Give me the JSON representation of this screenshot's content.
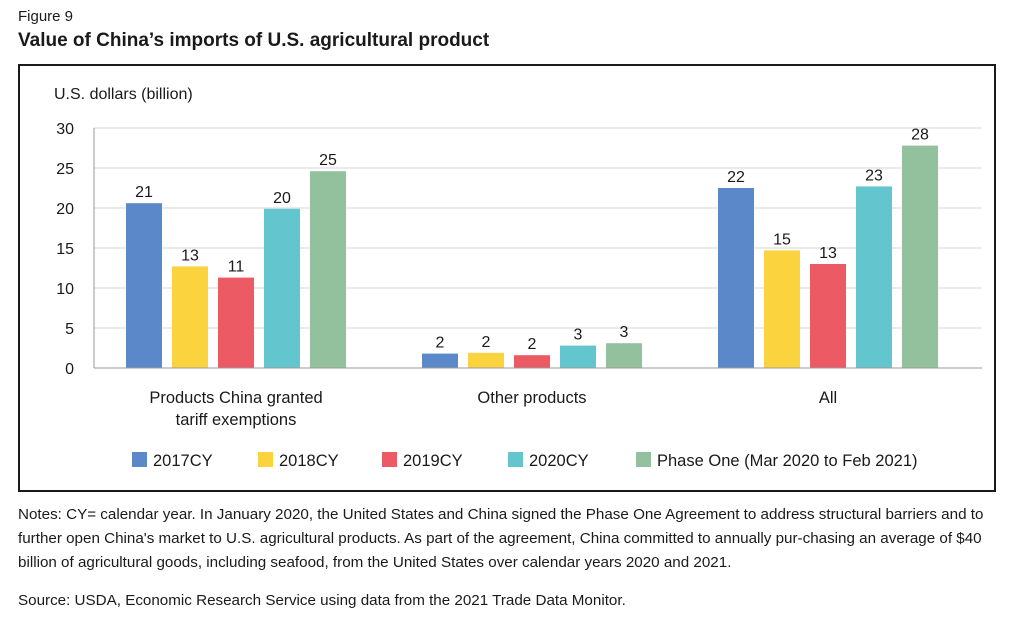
{
  "figure": {
    "label": "Figure 9",
    "title": "Value of China’s imports of U.S. agricultural product"
  },
  "chart_data": {
    "type": "bar",
    "unit_label": "U.S. dollars (billion)",
    "categories": [
      [
        "Products China granted",
        "tariff exemptions"
      ],
      [
        "Other products"
      ],
      [
        "All"
      ]
    ],
    "ylim": [
      0,
      30
    ],
    "yticks": [
      0,
      5,
      10,
      15,
      20,
      25,
      30
    ],
    "grid": true,
    "legend_position": "bottom",
    "series": [
      {
        "name": "2017CY",
        "color": "#5b88c8",
        "values": [
          20.6,
          1.8,
          22.5
        ],
        "labels": [
          "21",
          "2",
          "22"
        ]
      },
      {
        "name": "2018CY",
        "color": "#fad33f",
        "values": [
          12.7,
          1.9,
          14.7
        ],
        "labels": [
          "13",
          "2",
          "15"
        ]
      },
      {
        "name": "2019CY",
        "color": "#ec5b63",
        "values": [
          11.3,
          1.6,
          13.0
        ],
        "labels": [
          "11",
          "2",
          "13"
        ]
      },
      {
        "name": "2020CY",
        "color": "#63c6cf",
        "values": [
          19.9,
          2.8,
          22.7
        ],
        "labels": [
          "20",
          "3",
          "23"
        ]
      },
      {
        "name": "Phase One (Mar 2020 to Feb 2021)",
        "color": "#93c19d",
        "values": [
          24.6,
          3.1,
          27.8
        ],
        "labels": [
          "25",
          "3",
          "28"
        ]
      }
    ]
  },
  "notes": "Notes: CY= calendar year. In January 2020, the United States and China signed the Phase One Agreement to address structural barriers and to further open China's market to U.S. agricultural products. As part of the agreement, China committed to annually pur-chasing an average of $40 billion of agricultural goods, including seafood, from the United States over calendar years 2020 and 2021.",
  "source": "Source: USDA, Economic Research Service using data from the 2021 Trade Data Monitor."
}
